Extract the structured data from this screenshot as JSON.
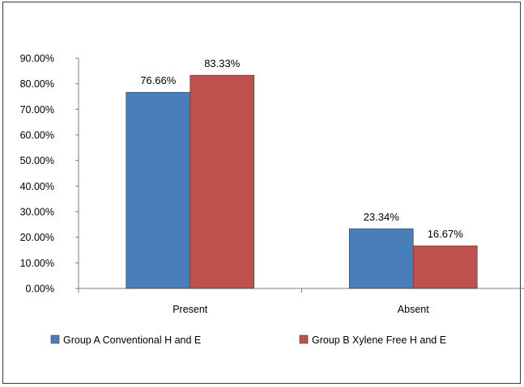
{
  "chart_data": {
    "type": "bar",
    "categories": [
      "Present",
      "Absent"
    ],
    "series": [
      {
        "name": "Group A Conventional H and E",
        "color": "#4a7ebb",
        "values": [
          76.66,
          23.34
        ],
        "labels": [
          "76.66%",
          "23.34%"
        ]
      },
      {
        "name": "Group B Xylene Free H and E",
        "color": "#c0504d",
        "values": [
          83.33,
          16.67
        ],
        "labels": [
          "83.33%",
          "16.67%"
        ]
      }
    ],
    "ylim": [
      0,
      90
    ],
    "yticks": [
      0,
      10,
      20,
      30,
      40,
      50,
      60,
      70,
      80,
      90
    ],
    "ytick_labels": [
      "0.00%",
      "10.00%",
      "20.00%",
      "30.00%",
      "40.00%",
      "50.00%",
      "60.00%",
      "70.00%",
      "80.00%",
      "90.00%"
    ],
    "grid": false,
    "legend_position": "bottom"
  }
}
